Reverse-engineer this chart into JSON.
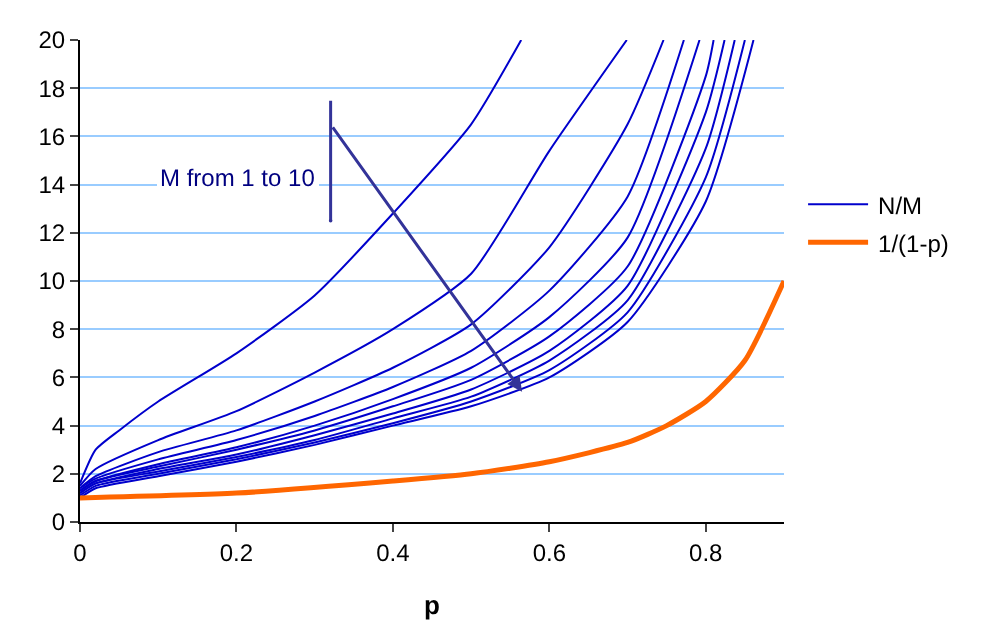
{
  "chart_data": {
    "type": "line",
    "xlabel": "p",
    "xlim": [
      0,
      0.9
    ],
    "xticks": [
      0,
      0.2,
      0.4,
      0.6,
      0.8
    ],
    "ylim": [
      0,
      20
    ],
    "yticks": [
      0,
      2,
      4,
      6,
      8,
      10,
      12,
      14,
      16,
      18,
      20
    ],
    "grid": "y",
    "legend": "right",
    "marker": "none",
    "line_style": "solid",
    "annotations": [
      "M from 1 to 10"
    ],
    "series": [
      {
        "name": "N/M",
        "color": "#0000cc",
        "x": [
          0,
          0.02,
          0.05,
          0.1,
          0.2,
          0.3,
          0.4,
          0.5,
          0.564
        ],
        "values": [
          1.6,
          3.0,
          3.8,
          5.0,
          7.0,
          9.4,
          12.8,
          16.5,
          20
        ]
      },
      {
        "color": "#0000cc",
        "x": [
          0,
          0.02,
          0.1,
          0.2,
          0.3,
          0.4,
          0.5,
          0.6,
          0.699
        ],
        "values": [
          1.5,
          2.2,
          3.4,
          4.6,
          6.2,
          8.0,
          10.3,
          15.4,
          20
        ]
      },
      {
        "color": "#0000cc",
        "x": [
          0,
          0.02,
          0.1,
          0.2,
          0.3,
          0.4,
          0.5,
          0.6,
          0.7,
          0.746
        ],
        "values": [
          1.4,
          1.9,
          2.9,
          3.8,
          5.0,
          6.4,
          8.2,
          11.4,
          16.5,
          20
        ]
      },
      {
        "color": "#0000cc",
        "x": [
          0,
          0.02,
          0.1,
          0.2,
          0.3,
          0.4,
          0.5,
          0.6,
          0.7,
          0.772
        ],
        "values": [
          1.4,
          1.8,
          2.6,
          3.4,
          4.4,
          5.6,
          7.1,
          9.6,
          13.5,
          20
        ]
      },
      {
        "color": "#0000cc",
        "x": [
          0,
          0.02,
          0.1,
          0.2,
          0.3,
          0.4,
          0.5,
          0.6,
          0.7,
          0.792
        ],
        "values": [
          1.3,
          1.7,
          2.4,
          3.1,
          4.0,
          5.1,
          6.4,
          8.5,
          11.8,
          20
        ]
      },
      {
        "color": "#0000cc",
        "x": [
          0,
          0.02,
          0.1,
          0.2,
          0.3,
          0.4,
          0.5,
          0.6,
          0.7,
          0.8,
          0.81
        ],
        "values": [
          1.3,
          1.7,
          2.3,
          3.0,
          3.8,
          4.8,
          5.9,
          7.7,
          10.6,
          18.5,
          20
        ]
      },
      {
        "color": "#0000cc",
        "x": [
          0,
          0.02,
          0.1,
          0.2,
          0.3,
          0.4,
          0.5,
          0.6,
          0.7,
          0.8,
          0.824
        ],
        "values": [
          1.2,
          1.6,
          2.2,
          2.8,
          3.6,
          4.5,
          5.5,
          7.1,
          9.8,
          17.0,
          20
        ]
      },
      {
        "color": "#0000cc",
        "x": [
          0,
          0.02,
          0.1,
          0.2,
          0.3,
          0.4,
          0.5,
          0.6,
          0.7,
          0.8,
          0.837
        ],
        "values": [
          1.2,
          1.6,
          2.1,
          2.7,
          3.4,
          4.3,
          5.2,
          6.7,
          9.2,
          15.5,
          20
        ]
      },
      {
        "color": "#0000cc",
        "x": [
          0,
          0.02,
          0.1,
          0.2,
          0.3,
          0.4,
          0.5,
          0.6,
          0.7,
          0.8,
          0.85
        ],
        "values": [
          1.1,
          1.5,
          2.0,
          2.6,
          3.3,
          4.1,
          5.0,
          6.3,
          8.7,
          14.3,
          20
        ]
      },
      {
        "color": "#0000cc",
        "x": [
          0,
          0.02,
          0.1,
          0.2,
          0.3,
          0.4,
          0.5,
          0.6,
          0.7,
          0.8,
          0.861
        ],
        "values": [
          1.0,
          1.4,
          1.9,
          2.5,
          3.2,
          4.0,
          4.8,
          6.0,
          8.3,
          13.3,
          20
        ]
      },
      {
        "name": "1/(1-p)",
        "color": "#ff6600",
        "x": [
          0,
          0.2,
          0.4,
          0.5,
          0.6,
          0.7,
          0.75,
          0.8,
          0.85,
          0.9
        ],
        "values": [
          1,
          1.2,
          1.7,
          2,
          2.5,
          3.3,
          4,
          5,
          6.7,
          10
        ]
      }
    ]
  }
}
